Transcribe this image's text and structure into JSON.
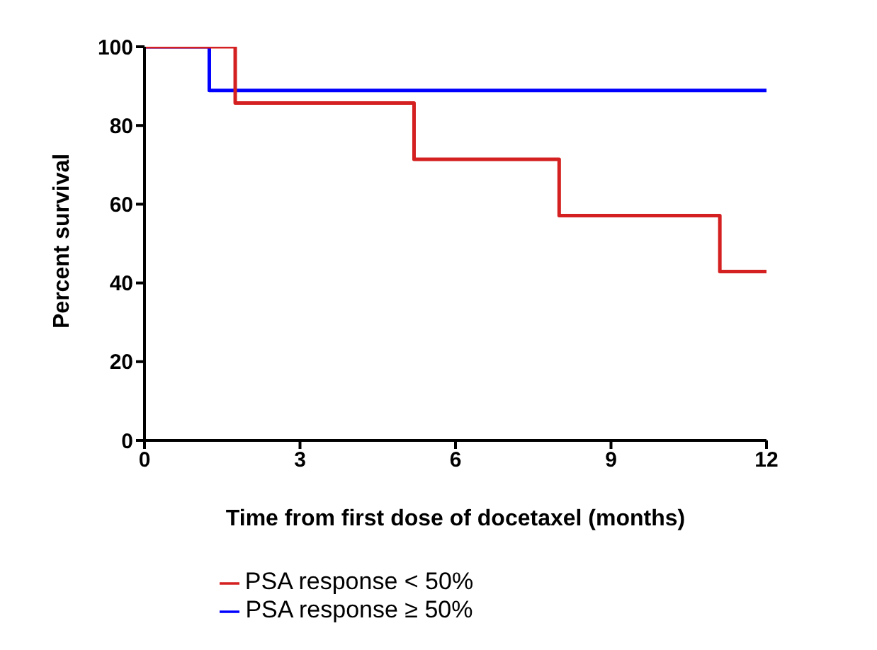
{
  "chart_data": {
    "type": "step",
    "xlabel": "Time from first dose of docetaxel  (months)",
    "ylabel": "Percent survival",
    "series": [
      {
        "name": "PSA response ≥ 50%",
        "color": "#0000ff",
        "x": [
          0,
          1.25,
          8.4,
          12
        ],
        "values": [
          100,
          88.9,
          88.9,
          88.9
        ]
      },
      {
        "name": "PSA response < 50%",
        "color": "#d42020",
        "x": [
          0,
          1.75,
          5.2,
          8.0,
          11.1,
          11.3,
          12
        ],
        "values": [
          100,
          85.7,
          71.4,
          57.1,
          42.9,
          42.9,
          42.9
        ]
      }
    ],
    "xlim": [
      0,
      12
    ],
    "xticks": [
      0,
      3,
      6,
      9,
      12
    ],
    "ylim": [
      0,
      100
    ],
    "yticks": [
      0,
      20,
      40,
      60,
      80,
      100
    ],
    "grid": false,
    "legend": "bottom",
    "marker": "none",
    "line_style": "solid"
  }
}
